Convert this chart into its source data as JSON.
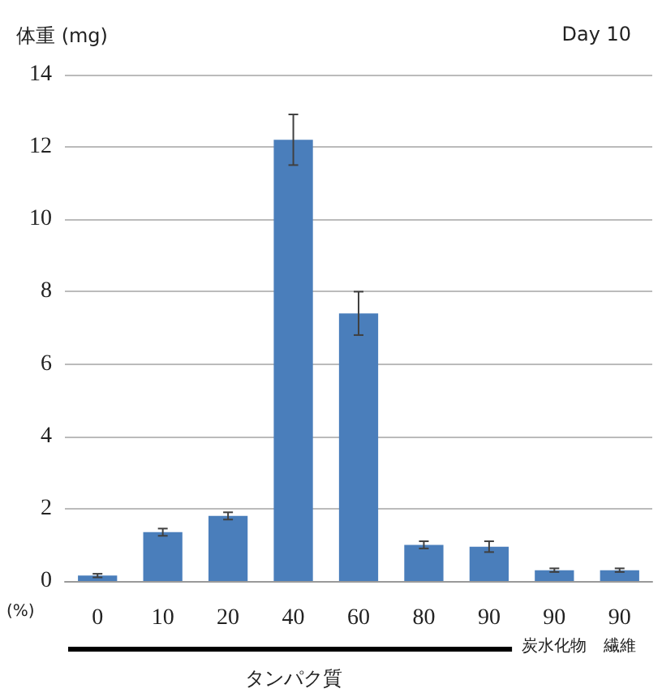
{
  "chart_data": {
    "type": "bar",
    "title": "Day 10",
    "ylabel": "体重 (mg)",
    "categories": [
      "0",
      "10",
      "20",
      "40",
      "60",
      "80",
      "90",
      "90\n炭水化物",
      "90\n繊維"
    ],
    "values": [
      0.15,
      1.35,
      1.8,
      12.2,
      7.4,
      1.0,
      0.95,
      0.3,
      0.3
    ],
    "errors": [
      0.05,
      0.1,
      0.1,
      0.7,
      0.6,
      0.1,
      0.15,
      0.05,
      0.05
    ],
    "color": "#4a7ebb",
    "ylim": [
      0,
      14
    ],
    "yticks": [
      0,
      2,
      4,
      6,
      8,
      10,
      12,
      14
    ],
    "grid": "y",
    "annotations": [
      "(%)",
      "タンパク質"
    ]
  }
}
